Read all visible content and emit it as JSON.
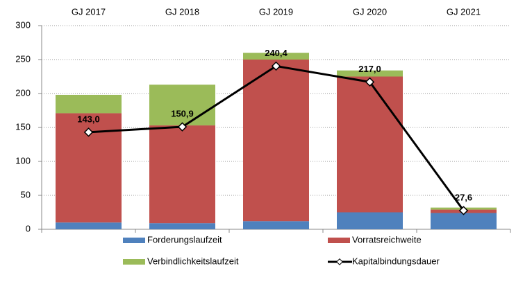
{
  "chart_data": {
    "type": "bar",
    "stacked": true,
    "categories": [
      "GJ 2017",
      "GJ 2018",
      "GJ 2019",
      "GJ 2020",
      "GJ 2021"
    ],
    "ylim": [
      0,
      300
    ],
    "yticks": [
      0,
      50,
      100,
      150,
      200,
      250,
      300
    ],
    "grid": true,
    "series": [
      {
        "name": "Forderungslaufzeit",
        "color": "#4f81bd",
        "values": [
          10,
          9,
          12,
          25,
          24
        ]
      },
      {
        "name": "Vorratsreichweite",
        "color": "#c0504d",
        "values": [
          161,
          144,
          238,
          200,
          5
        ]
      },
      {
        "name": "Verbindlichkeitslaufzeit",
        "color": "#9bbb59",
        "values": [
          27,
          60,
          10,
          9,
          3
        ]
      },
      {
        "name": "Kapitalbindungsdauer",
        "color": "#000000",
        "type": "line",
        "values": [
          143.0,
          150.9,
          240.4,
          217.0,
          27.6
        ],
        "value_labels": [
          "143,0",
          "150,9",
          "240,4",
          "217,0",
          "27,6"
        ]
      }
    ]
  }
}
